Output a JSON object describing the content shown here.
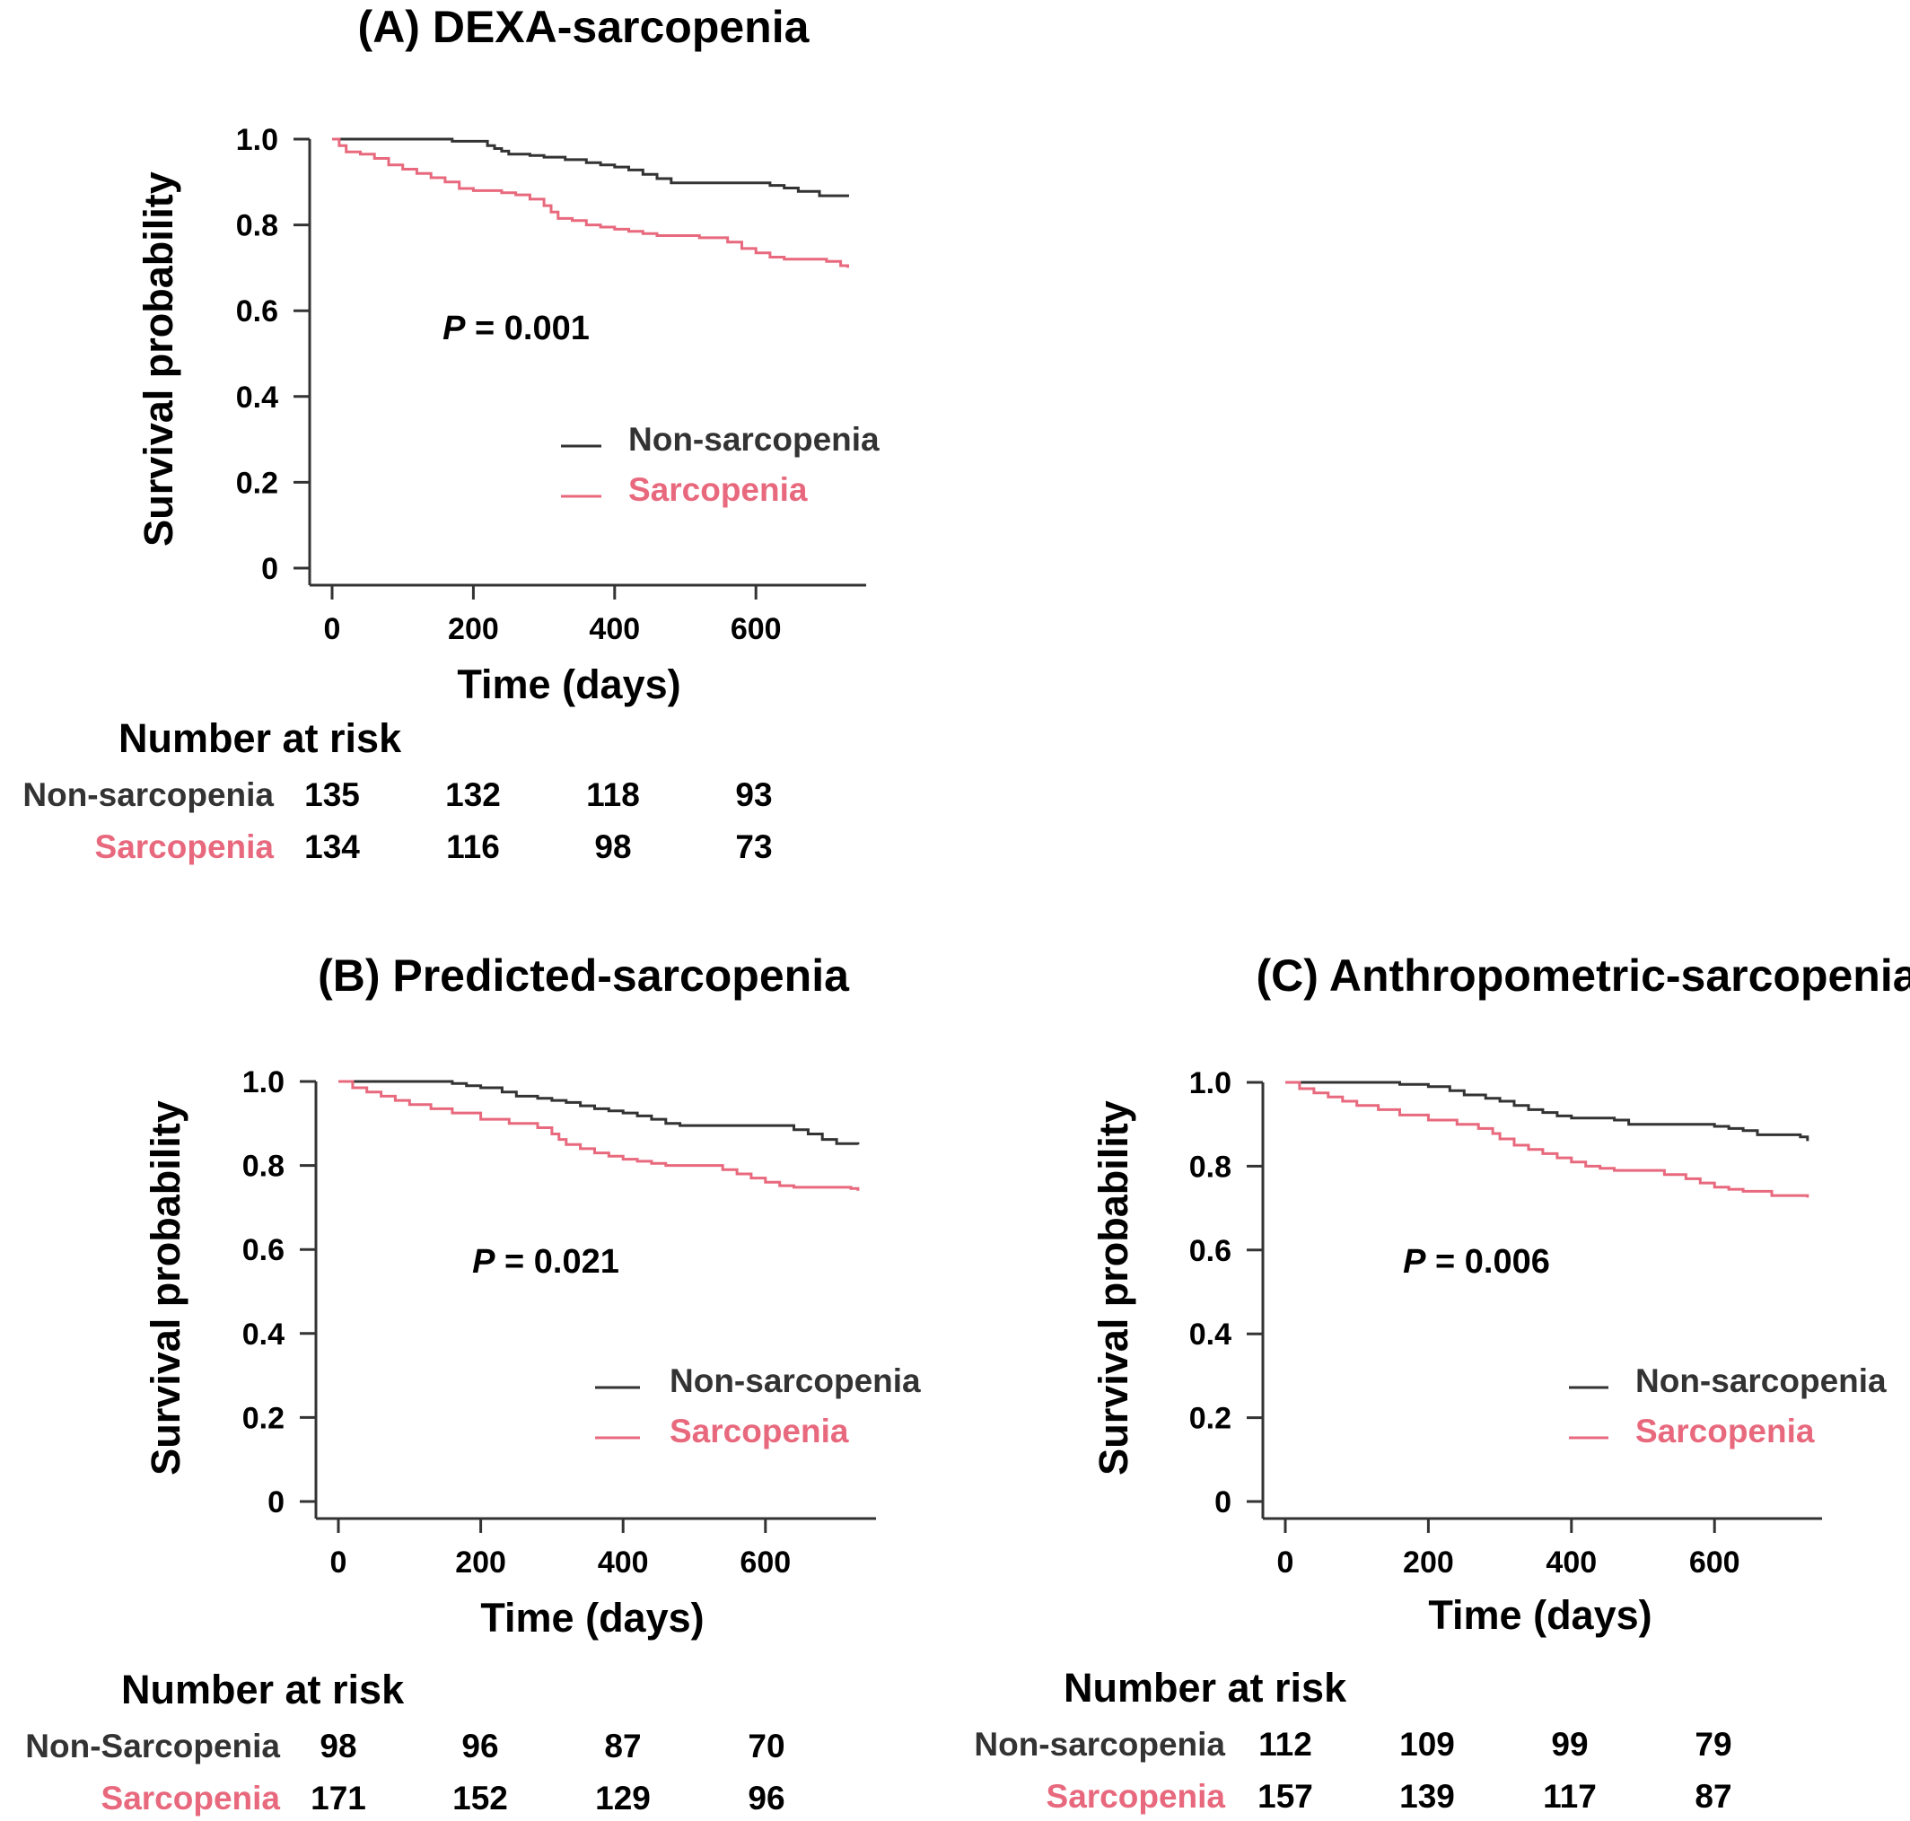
{
  "colors": {
    "non_sarcopenia": "#333333",
    "sarcopenia": "#e8697d",
    "axis": "#333333"
  },
  "chart_data": [
    {
      "type": "line",
      "title": "(A) DEXA-sarcopenia",
      "xlabel": "Time (days)",
      "ylabel": "Survival probability",
      "xlim": [
        0,
        730
      ],
      "ylim": [
        0,
        1.0
      ],
      "xticks": [
        0,
        200,
        400,
        600
      ],
      "xtick_labels": [
        "0",
        "200",
        "400",
        "600"
      ],
      "yticks": [
        0,
        0.2,
        0.4,
        0.6,
        0.8,
        1.0
      ],
      "ytick_labels": [
        "0",
        "0.2",
        "0.4",
        "0.6",
        "0.8",
        "1.0"
      ],
      "legend": "center-right",
      "annotation": {
        "p_label": "P",
        "p_value": " = 0.001"
      },
      "series": [
        {
          "name": "Non-sarcopenia",
          "x": [
            0,
            100,
            140,
            170,
            200,
            220,
            230,
            240,
            250,
            280,
            300,
            330,
            360,
            380,
            400,
            420,
            440,
            460,
            480,
            600,
            620,
            640,
            660,
            690,
            730
          ],
          "y": [
            1.0,
            1.0,
            1.0,
            0.995,
            0.995,
            0.985,
            0.978,
            0.972,
            0.965,
            0.962,
            0.958,
            0.952,
            0.945,
            0.94,
            0.935,
            0.928,
            0.918,
            0.908,
            0.898,
            0.898,
            0.892,
            0.886,
            0.878,
            0.868,
            0.865
          ]
        },
        {
          "name": "Sarcopenia",
          "x": [
            0,
            10,
            20,
            40,
            60,
            80,
            100,
            120,
            140,
            160,
            180,
            200,
            240,
            260,
            280,
            300,
            310,
            320,
            340,
            360,
            380,
            400,
            420,
            440,
            460,
            520,
            560,
            580,
            600,
            620,
            640,
            700,
            720,
            730
          ],
          "y": [
            1.0,
            0.985,
            0.97,
            0.965,
            0.955,
            0.94,
            0.93,
            0.92,
            0.91,
            0.9,
            0.885,
            0.88,
            0.875,
            0.87,
            0.86,
            0.845,
            0.83,
            0.815,
            0.81,
            0.8,
            0.795,
            0.79,
            0.785,
            0.78,
            0.775,
            0.77,
            0.76,
            0.745,
            0.735,
            0.725,
            0.72,
            0.715,
            0.705,
            0.7
          ]
        }
      ],
      "risk_table": {
        "heading": "Number at risk",
        "rows": [
          {
            "label": "Non-sarcopenia",
            "counts": [
              "135",
              "132",
              "118",
              "93"
            ]
          },
          {
            "label": "Sarcopenia",
            "counts": [
              "134",
              "116",
              "98",
              "73"
            ]
          }
        ]
      }
    },
    {
      "type": "line",
      "title": "(B) Predicted-sarcopenia",
      "xlabel": "Time (days)",
      "ylabel": "Survival probability",
      "xlim": [
        0,
        730
      ],
      "ylim": [
        0,
        1.0
      ],
      "xticks": [
        0,
        200,
        400,
        600
      ],
      "xtick_labels": [
        "0",
        "200",
        "400",
        "600"
      ],
      "yticks": [
        0,
        0.2,
        0.4,
        0.6,
        0.8,
        1.0
      ],
      "ytick_labels": [
        "0",
        "0.2",
        "0.4",
        "0.6",
        "0.8",
        "1.0"
      ],
      "legend": "center-right",
      "annotation": {
        "p_label": "P",
        "p_value": " = 0.021"
      },
      "series": [
        {
          "name": "Non-sarcopenia",
          "x": [
            0,
            130,
            160,
            180,
            200,
            230,
            250,
            280,
            300,
            320,
            340,
            360,
            380,
            400,
            420,
            440,
            460,
            480,
            600,
            640,
            660,
            680,
            700,
            730
          ],
          "y": [
            1.0,
            1.0,
            0.995,
            0.99,
            0.985,
            0.975,
            0.965,
            0.96,
            0.955,
            0.95,
            0.942,
            0.935,
            0.93,
            0.925,
            0.918,
            0.91,
            0.9,
            0.895,
            0.895,
            0.885,
            0.875,
            0.862,
            0.852,
            0.85
          ]
        },
        {
          "name": "Sarcopenia",
          "x": [
            0,
            20,
            40,
            60,
            80,
            100,
            130,
            160,
            200,
            240,
            280,
            300,
            310,
            320,
            340,
            360,
            380,
            400,
            420,
            440,
            460,
            540,
            560,
            580,
            600,
            620,
            640,
            720,
            730
          ],
          "y": [
            1.0,
            0.985,
            0.975,
            0.965,
            0.955,
            0.945,
            0.935,
            0.925,
            0.91,
            0.9,
            0.89,
            0.875,
            0.862,
            0.85,
            0.84,
            0.83,
            0.822,
            0.815,
            0.81,
            0.805,
            0.8,
            0.79,
            0.78,
            0.77,
            0.76,
            0.752,
            0.748,
            0.745,
            0.74
          ]
        }
      ],
      "risk_table": {
        "heading": "Number at risk",
        "rows": [
          {
            "label": "Non-Sarcopenia",
            "counts": [
              "98",
              "96",
              "87",
              "70"
            ]
          },
          {
            "label": "Sarcopenia",
            "counts": [
              "171",
              "152",
              "129",
              "96"
            ]
          }
        ]
      }
    },
    {
      "type": "line",
      "title": "(C) Anthropometric-sarcopenia",
      "xlabel": "Time (days)",
      "ylabel": "Survival probability",
      "xlim": [
        0,
        730
      ],
      "ylim": [
        0,
        1.0
      ],
      "xticks": [
        0,
        200,
        400,
        600
      ],
      "xtick_labels": [
        "0",
        "200",
        "400",
        "600"
      ],
      "yticks": [
        0,
        0.2,
        0.4,
        0.6,
        0.8,
        1.0
      ],
      "ytick_labels": [
        "0",
        "0.2",
        "0.4",
        "0.6",
        "0.8",
        "1.0"
      ],
      "legend": "center-right",
      "annotation": {
        "p_label": "P",
        "p_value": " = 0.006"
      },
      "series": [
        {
          "name": "Non-sarcopenia",
          "x": [
            0,
            120,
            160,
            200,
            230,
            250,
            280,
            300,
            320,
            340,
            360,
            380,
            400,
            460,
            480,
            600,
            620,
            640,
            660,
            720,
            730
          ],
          "y": [
            1.0,
            1.0,
            0.995,
            0.99,
            0.98,
            0.97,
            0.962,
            0.955,
            0.945,
            0.935,
            0.928,
            0.92,
            0.915,
            0.91,
            0.9,
            0.895,
            0.89,
            0.885,
            0.875,
            0.87,
            0.86
          ]
        },
        {
          "name": "Sarcopenia",
          "x": [
            0,
            20,
            40,
            60,
            80,
            100,
            130,
            160,
            200,
            240,
            270,
            290,
            300,
            320,
            340,
            360,
            380,
            400,
            420,
            440,
            460,
            530,
            560,
            580,
            600,
            620,
            640,
            680,
            730
          ],
          "y": [
            1.0,
            0.985,
            0.975,
            0.965,
            0.955,
            0.945,
            0.935,
            0.922,
            0.91,
            0.9,
            0.89,
            0.878,
            0.865,
            0.85,
            0.84,
            0.83,
            0.82,
            0.81,
            0.8,
            0.795,
            0.79,
            0.78,
            0.77,
            0.76,
            0.75,
            0.745,
            0.74,
            0.73,
            0.725
          ]
        }
      ],
      "risk_table": {
        "heading": "Number at risk",
        "rows": [
          {
            "label": "Non-sarcopenia",
            "counts": [
              "112",
              "109",
              "99",
              "79"
            ]
          },
          {
            "label": "Sarcopenia",
            "counts": [
              "157",
              "139",
              "117",
              "87"
            ]
          }
        ]
      }
    }
  ]
}
